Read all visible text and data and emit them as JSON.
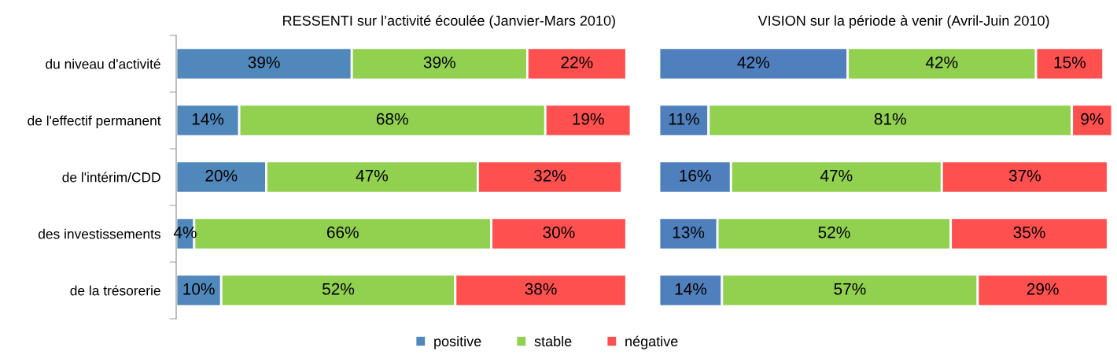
{
  "chart_data": [
    {
      "type": "bar",
      "orientation": "horizontal",
      "stacked": true,
      "title": "RESSENTI sur l’activité écoulée (Janvier-Mars 2010)",
      "categories": [
        "du niveau d'activité",
        "de l'effectif permanent",
        "de l'intérim/CDD",
        "des investissements",
        "de la trésorerie"
      ],
      "tick_labels": "y",
      "legend": "bottom",
      "series": [
        {
          "name": "positive",
          "color": "#5088bc",
          "values": [
            39,
            14,
            20,
            4,
            10
          ],
          "value_labels": [
            "39%",
            "14%",
            "20%",
            "4%",
            "10%"
          ]
        },
        {
          "name": "stable",
          "color": "#92d050",
          "values": [
            39,
            68,
            47,
            66,
            52
          ],
          "value_labels": [
            "39%",
            "68%",
            "47%",
            "66%",
            "52%"
          ]
        },
        {
          "name": "négative",
          "color": "#ff5050",
          "values": [
            22,
            19,
            32,
            30,
            38
          ],
          "value_labels": [
            "22%",
            "19%",
            "32%",
            "30%",
            "38%"
          ]
        }
      ]
    },
    {
      "type": "bar",
      "orientation": "horizontal",
      "stacked": true,
      "title": "VISION sur la période à venir (Avril-Juin 2010)",
      "categories": [
        null,
        null,
        null,
        null,
        null
      ],
      "tick_labels": false,
      "series": [
        {
          "color": "#4f80bd",
          "values": [
            42,
            11,
            16,
            13,
            14
          ],
          "value_labels": [
            "42%",
            "11%",
            "16%",
            "13%",
            "14%"
          ]
        },
        {
          "color": "#92d050",
          "values": [
            42,
            81,
            47,
            52,
            57
          ],
          "value_labels": [
            "42%",
            "81%",
            "47%",
            "52%",
            "57%"
          ]
        },
        {
          "color": "#ff5050",
          "values": [
            15,
            9,
            37,
            35,
            29
          ],
          "value_labels": [
            "15%",
            "9%",
            "37%",
            "35%",
            "29%"
          ]
        }
      ]
    }
  ]
}
